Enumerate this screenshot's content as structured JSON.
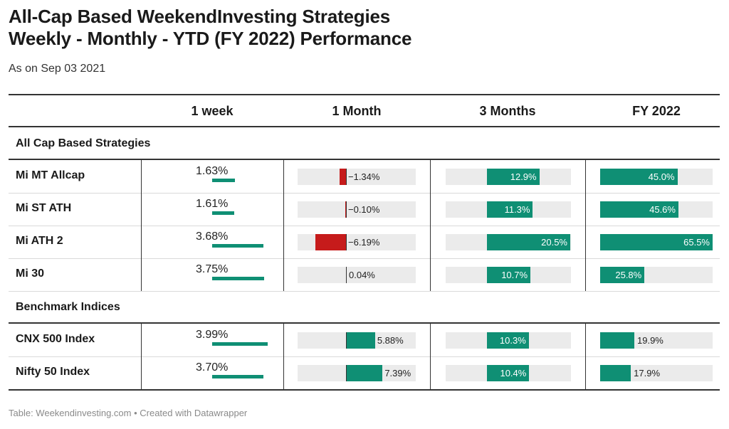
{
  "title_line1": "All-Cap Based WeekendInvesting Strategies",
  "title_line2": "Weekly - Monthly - YTD (FY 2022)  Performance",
  "subtitle": "As on Sep 03 2021",
  "footer": "Table: Weekendinvesting.com • Created with Datawrapper",
  "colors": {
    "positive": "#0f8f74",
    "negative": "#c61b1b",
    "bar_background": "#ebebeb"
  },
  "chart_data": {
    "type": "table",
    "columns": [
      "",
      "1 week",
      "1 Month",
      "3 Months",
      "FY 2022"
    ],
    "sections": [
      {
        "name": "All Cap Based Strategies",
        "rows": [
          {
            "name": "Mi MT Allcap",
            "week": 1.63,
            "week_label": "1.63%",
            "month": -1.34,
            "month_label": "−1.34%",
            "m3": 12.9,
            "m3_label": "12.9%",
            "fy": 45.0,
            "fy_label": "45.0%"
          },
          {
            "name": "Mi ST ATH",
            "week": 1.61,
            "week_label": "1.61%",
            "month": -0.1,
            "month_label": "−0.10%",
            "m3": 11.3,
            "m3_label": "11.3%",
            "fy": 45.6,
            "fy_label": "45.6%"
          },
          {
            "name": "Mi ATH 2",
            "week": 3.68,
            "week_label": "3.68%",
            "month": -6.19,
            "month_label": "−6.19%",
            "m3": 20.5,
            "m3_label": "20.5%",
            "fy": 65.5,
            "fy_label": "65.5%"
          },
          {
            "name": "Mi 30",
            "week": 3.75,
            "week_label": "3.75%",
            "month": 0.04,
            "month_label": "0.04%",
            "m3": 10.7,
            "m3_label": "10.7%",
            "fy": 25.8,
            "fy_label": "25.8%"
          }
        ]
      },
      {
        "name": "Benchmark Indices",
        "rows": [
          {
            "name": "CNX 500 Index",
            "week": 3.99,
            "week_label": "3.99%",
            "month": 5.88,
            "month_label": "5.88%",
            "m3": 10.3,
            "m3_label": "10.3%",
            "fy": 19.9,
            "fy_label": "19.9%"
          },
          {
            "name": "Nifty 50 Index",
            "week": 3.7,
            "week_label": "3.70%",
            "month": 7.39,
            "month_label": "7.39%",
            "m3": 10.4,
            "m3_label": "10.4%",
            "fy": 17.9,
            "fy_label": "17.9%"
          }
        ]
      }
    ]
  }
}
